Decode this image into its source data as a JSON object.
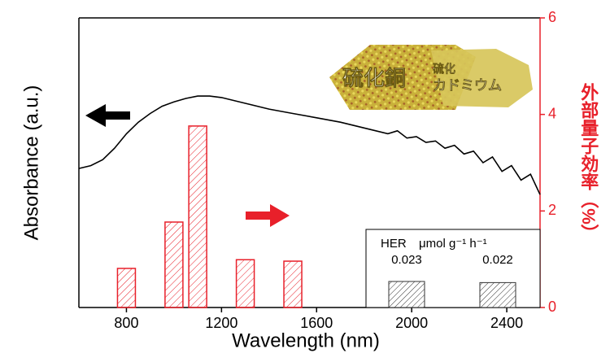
{
  "chart_data": {
    "type": "combo",
    "x_label": "Wavelength (nm)",
    "y_label": "Absorbance (a.u.)",
    "y2_label": "外部量子効率（%）",
    "xlim": [
      600,
      2540
    ],
    "xticks": [
      800,
      1200,
      1600,
      2000,
      2400
    ],
    "ylim": [
      0,
      1
    ],
    "y2lim": [
      0,
      6
    ],
    "y2ticks": [
      0,
      2,
      4,
      6
    ],
    "series": [
      {
        "type": "line",
        "color": "#000000",
        "x": [
          600,
          650,
          700,
          750,
          800,
          850,
          900,
          950,
          1000,
          1050,
          1100,
          1150,
          1200,
          1300,
          1400,
          1500,
          1600,
          1700,
          1800,
          1900,
          1940,
          1980,
          2020,
          2060,
          2100,
          2140,
          2180,
          2220,
          2260,
          2300,
          2340,
          2380,
          2420,
          2460,
          2500,
          2540
        ],
        "values": [
          0.48,
          0.49,
          0.51,
          0.55,
          0.6,
          0.64,
          0.67,
          0.695,
          0.71,
          0.722,
          0.73,
          0.73,
          0.725,
          0.705,
          0.685,
          0.67,
          0.655,
          0.64,
          0.62,
          0.6,
          0.61,
          0.585,
          0.59,
          0.57,
          0.575,
          0.55,
          0.56,
          0.53,
          0.54,
          0.5,
          0.52,
          0.47,
          0.49,
          0.44,
          0.46,
          0.39
        ]
      },
      {
        "type": "bar",
        "axis": "y2",
        "color": "#e8202a",
        "x": [
          800,
          1000,
          1100,
          1300,
          1500
        ],
        "values": [
          0.81,
          1.77,
          3.76,
          0.99,
          0.96
        ]
      }
    ],
    "inset": {
      "title": "HER",
      "unit": "μmol g⁻¹ h⁻¹",
      "values": [
        0.023,
        0.022
      ]
    },
    "image_labels": [
      "硫化銅",
      "硫化",
      "カドミウム"
    ]
  }
}
